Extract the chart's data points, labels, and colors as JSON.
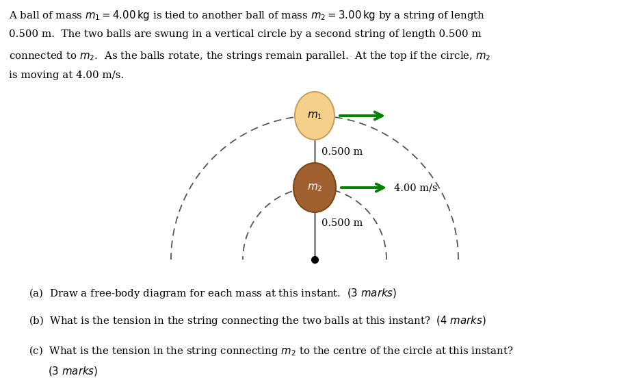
{
  "ball_m1_color": "#F5D08A",
  "ball_m1_edge": "#C8A060",
  "ball_m2_color": "#A06030",
  "ball_m2_edge": "#7A4818",
  "string_color": "#888888",
  "dashed_color": "#555555",
  "arrow_color": "#008000",
  "center_dot_color": "#000000",
  "label_m1": "$m_1$",
  "label_m2": "$m_2$",
  "label_string1": "0.500 m",
  "label_string2": "0.500 m",
  "label_speed": "4.00 m/s",
  "fig_width": 9.21,
  "fig_height": 5.71
}
